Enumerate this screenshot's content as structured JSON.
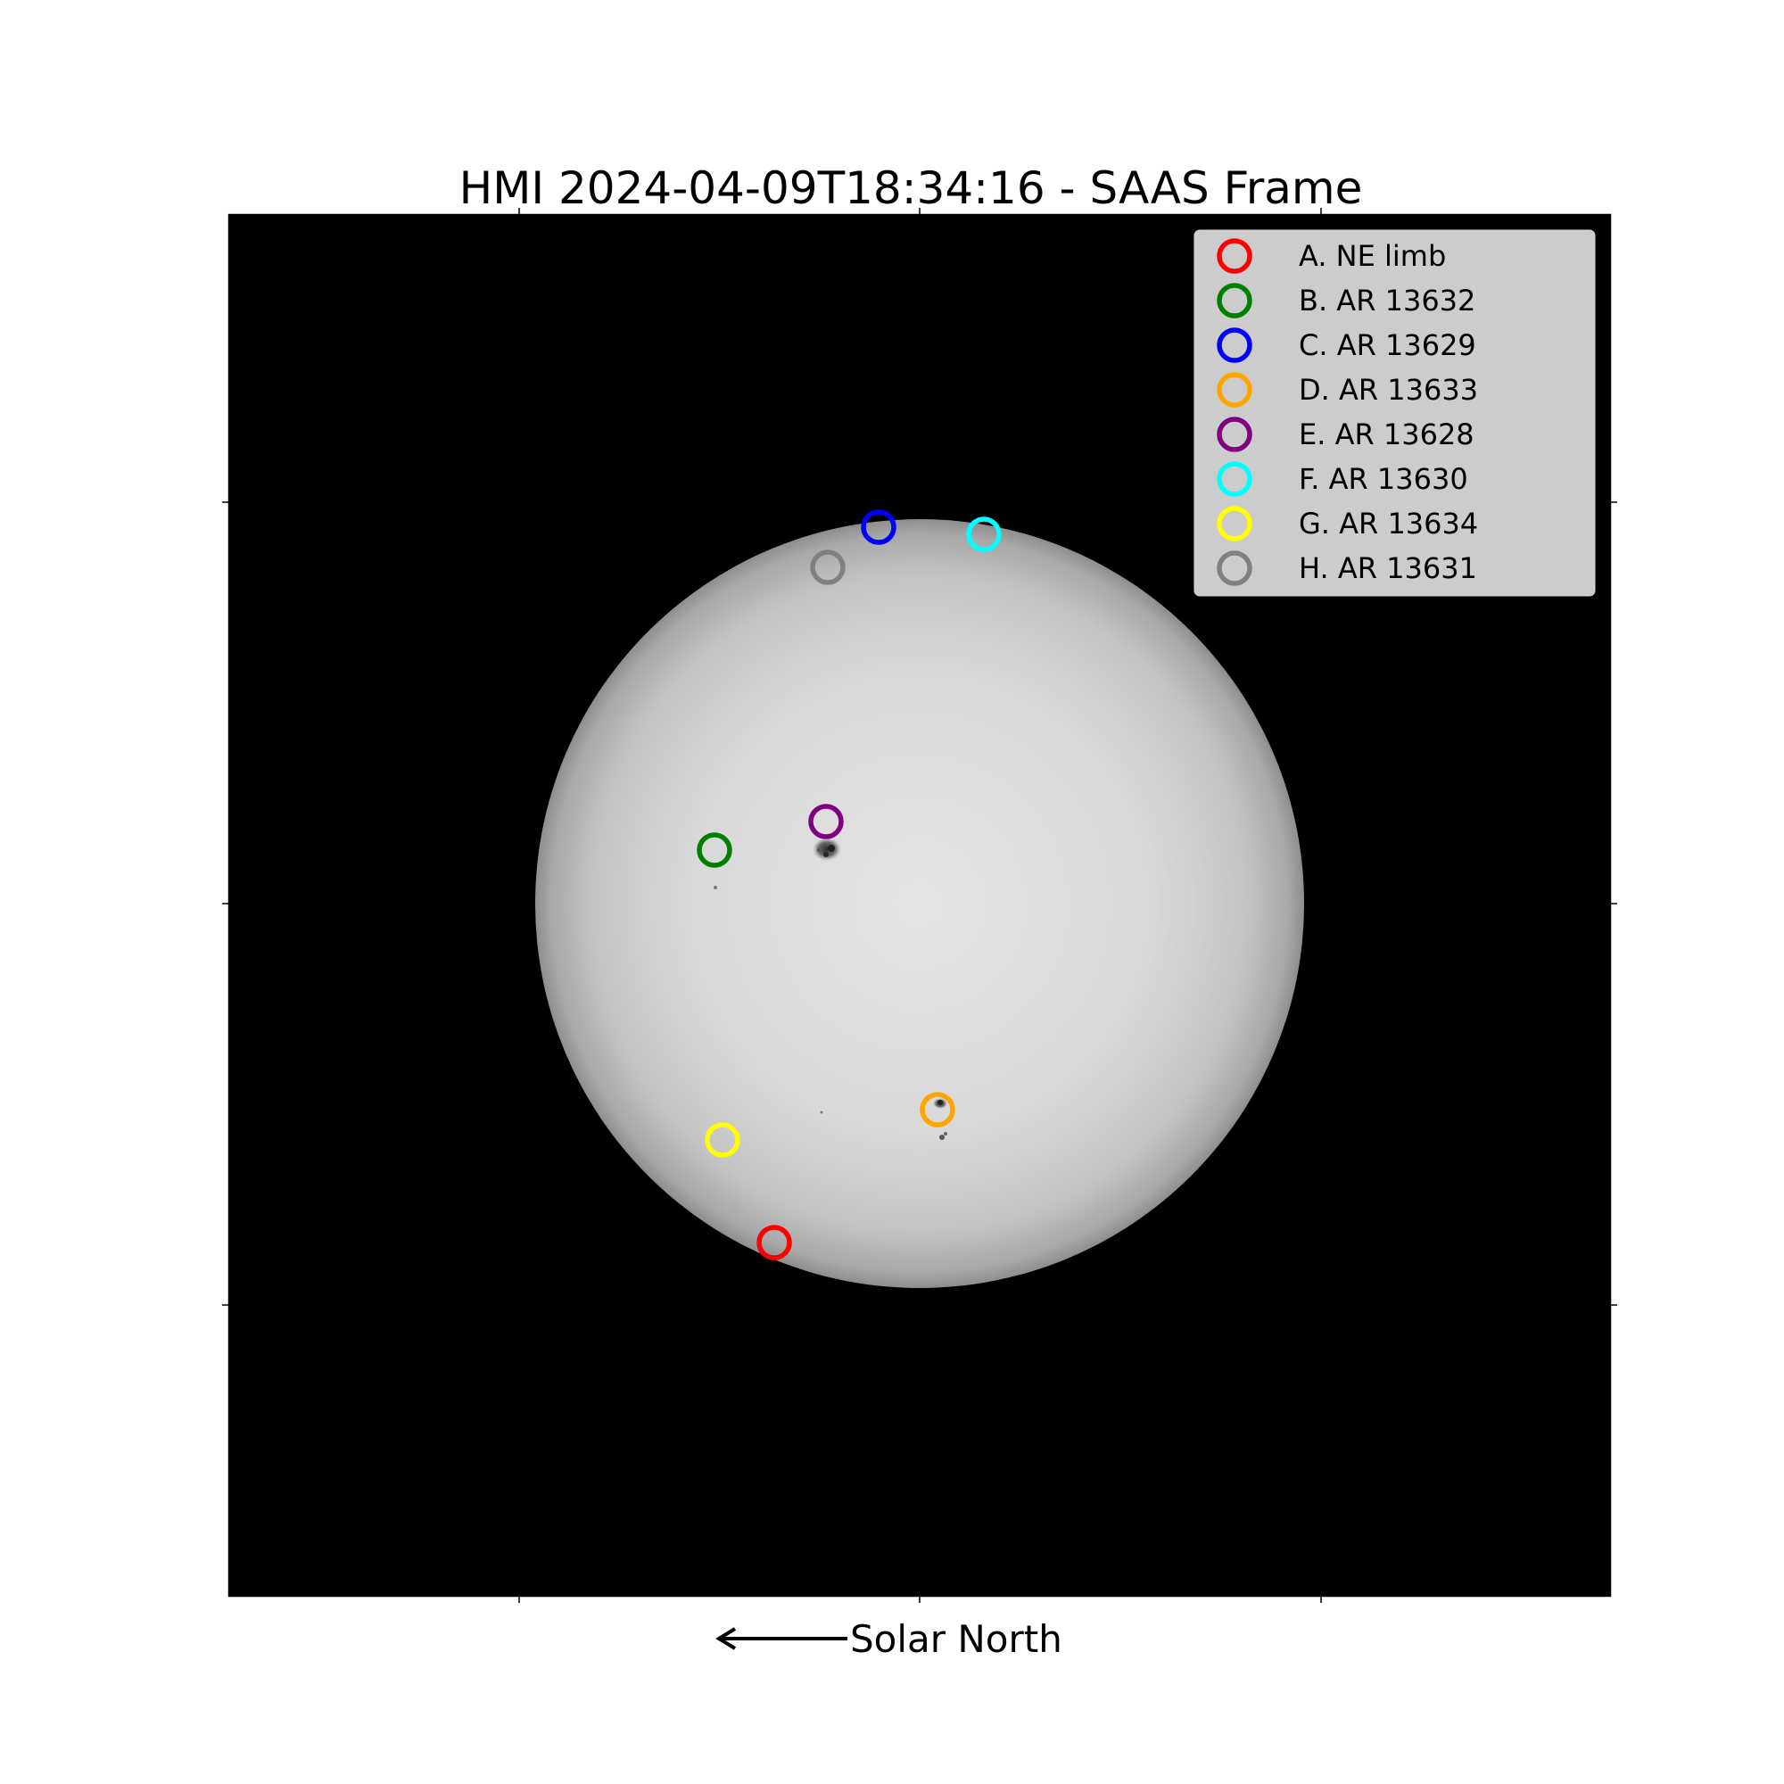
{
  "title": "HMI 2024-04-09T18:34:16 - SAAS Frame",
  "direction_label": "Solar North",
  "legend": [
    {
      "letter": "A.",
      "name": "NE limb",
      "color": "#ff0000"
    },
    {
      "letter": "B.",
      "name": "AR 13632",
      "color": "#008000"
    },
    {
      "letter": "C.",
      "name": "AR 13629",
      "color": "#0000ff"
    },
    {
      "letter": "D.",
      "name": "AR 13633",
      "color": "#ffa500"
    },
    {
      "letter": "E.",
      "name": "AR 13628",
      "color": "#800080"
    },
    {
      "letter": "F.",
      "name": "AR 13630",
      "color": "#00ffff"
    },
    {
      "letter": "G.",
      "name": "AR 13634",
      "color": "#ffff00"
    },
    {
      "letter": "H.",
      "name": "AR 13631",
      "color": "#808080"
    }
  ],
  "colors": {
    "background": "#000000",
    "sun_center": "#e4e4e4",
    "sun_limb": "#8e8e8e",
    "legend_bg": "#cccccc"
  }
}
